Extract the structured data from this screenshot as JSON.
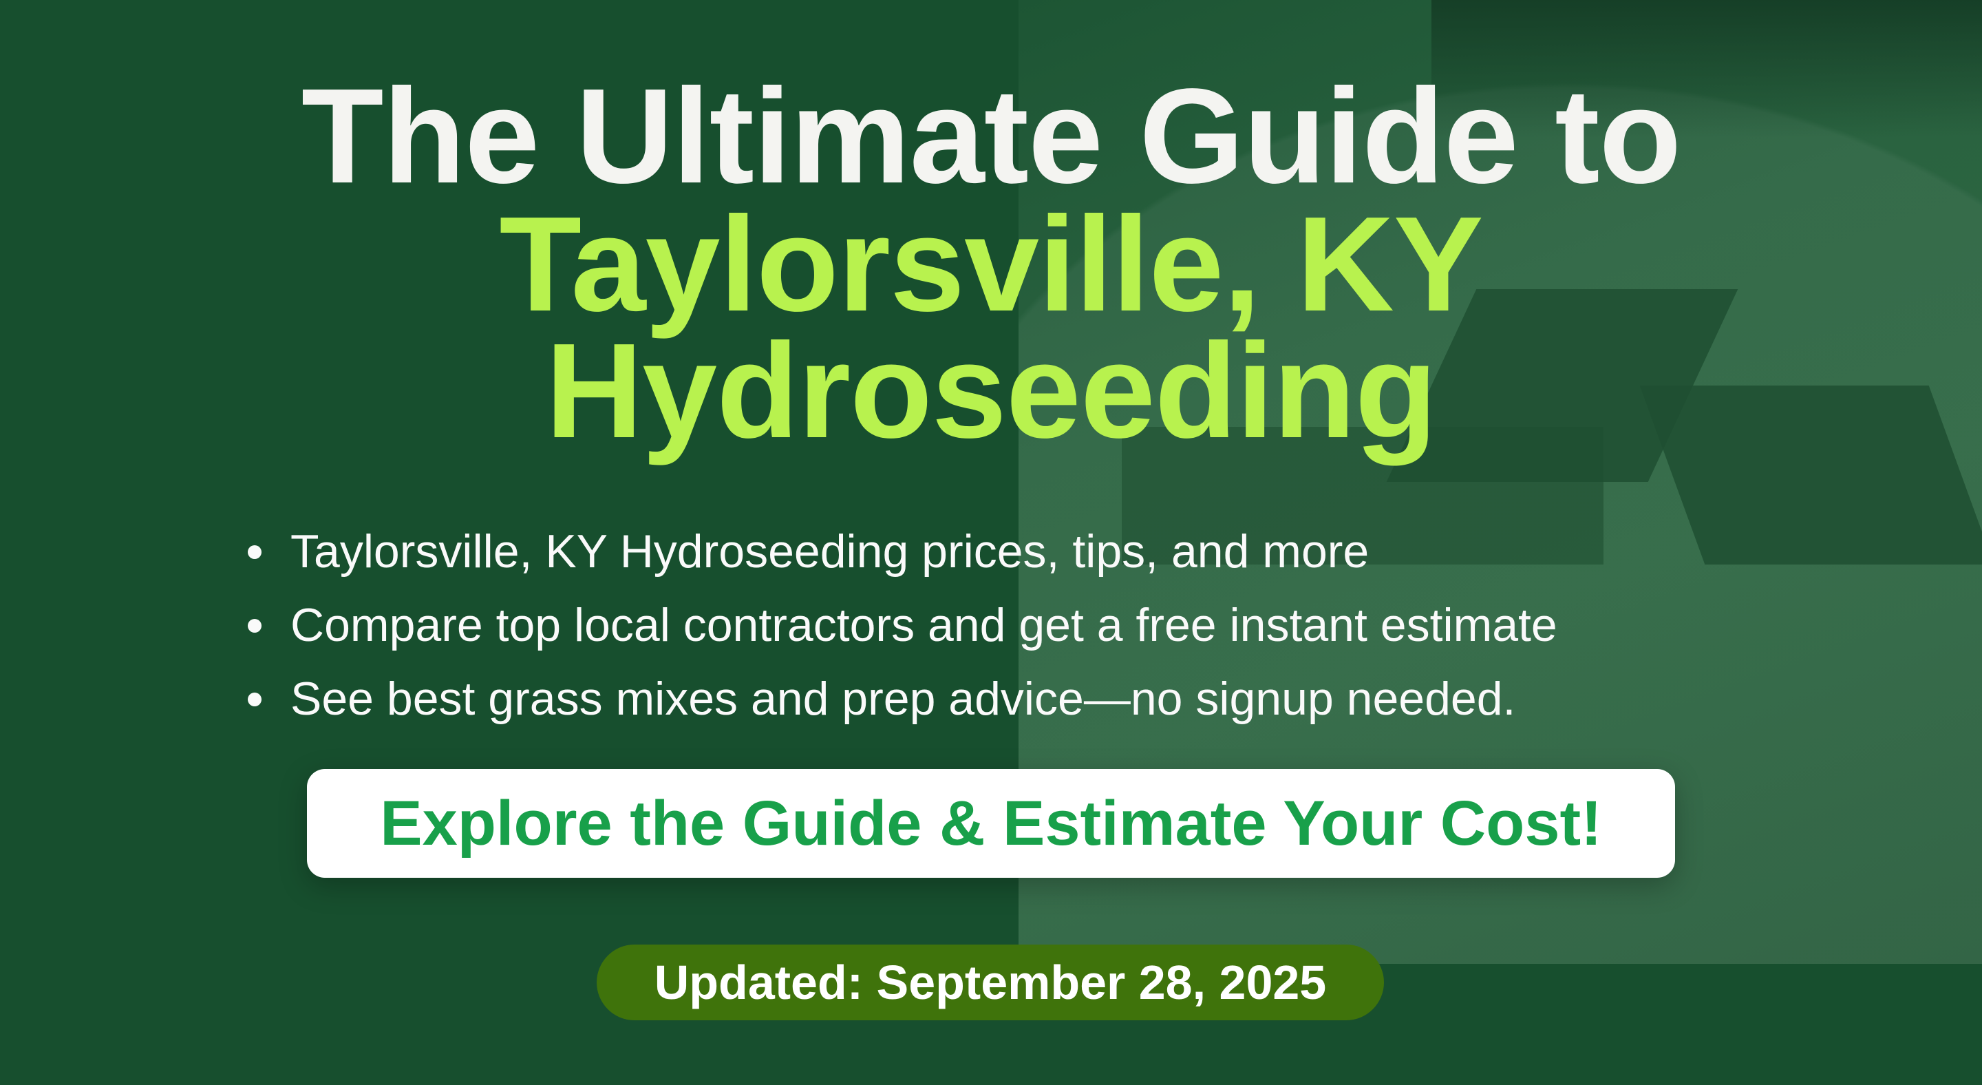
{
  "title": {
    "line1": "The Ultimate Guide to",
    "line2": "Taylorsville, KY",
    "line3": "Hydroseeding"
  },
  "bullets": [
    "Taylorsville, KY Hydroseeding prices, tips, and more",
    "Compare top local contractors and get a free instant estimate",
    "See best grass mixes and prep advice—no signup needed."
  ],
  "cta": {
    "label": "Explore the Guide & Estimate Your Cost!"
  },
  "updated": {
    "label": "Updated: September 28, 2025"
  },
  "colors": {
    "background": "#174f2e",
    "title_white": "#f4f4f1",
    "title_accent": "#b8f24e",
    "cta_text": "#18a04a",
    "badge_bg": "#3f730b"
  }
}
